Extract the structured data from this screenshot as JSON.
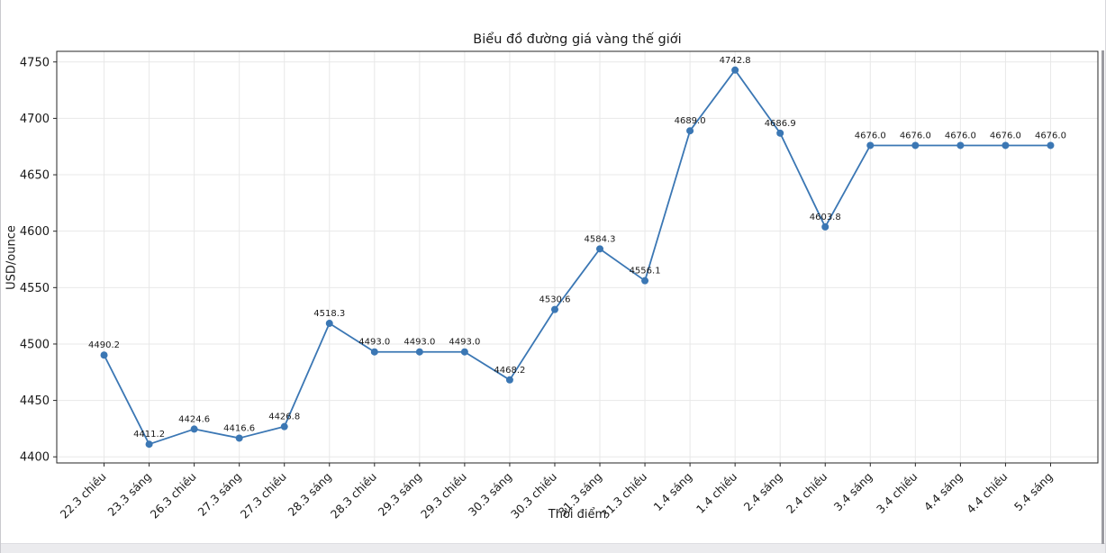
{
  "page": {
    "background": "#ffffff",
    "bottom_strip_color": "#ebebee",
    "scrollbar_color": "#9b9ba1"
  },
  "chart_data": {
    "type": "line",
    "title": "Biểu đồ đường giá vàng thế giới",
    "xlabel": "Thời điểm",
    "ylabel": "USD/ounce",
    "categories": [
      "22.3 chiều",
      "23.3 sáng",
      "26.3 chiều",
      "27.3 sáng",
      "27.3 chiều",
      "28.3 sáng",
      "28.3 chiều",
      "29.3 sáng",
      "29.3 chiều",
      "30.3 sáng",
      "30.3 chiều",
      "31.3 sáng",
      "31.3 chiều",
      "1.4 sáng",
      "1.4 chiều",
      "2.4 sáng",
      "2.4 chiều",
      "3.4 sáng",
      "3.4 chiều",
      "4.4 sáng",
      "4.4 chiều",
      "5.4 sáng"
    ],
    "values": [
      4490.2,
      4411.2,
      4424.6,
      4416.6,
      4426.8,
      4518.3,
      4493.0,
      4493.0,
      4493.0,
      4468.2,
      4530.6,
      4584.3,
      4556.1,
      4689.0,
      4742.8,
      4686.9,
      4603.8,
      4676.0,
      4676.0,
      4676.0,
      4676.0,
      4676.0
    ],
    "point_labels": [
      "4490.2",
      "4411.2",
      "4424.6",
      "4416.6",
      "4426.8",
      "4518.3",
      "4493.0",
      "4493.0",
      "4493.0",
      "4468.2",
      "4530.6",
      "4584.3",
      "4556.1",
      "4689.0",
      "4742.8",
      "4686.9",
      "4603.8",
      "4676.0",
      "4676.0",
      "4676.0",
      "4676.0",
      "4676.0"
    ],
    "yticks": [
      4400,
      4450,
      4500,
      4550,
      4600,
      4650,
      4700,
      4750
    ],
    "ylim": [
      4394.6,
      4759.4
    ],
    "grid": true,
    "legend": "none",
    "line_color": "#3b77b4",
    "marker": "circle",
    "grid_color": "#e8e8e8",
    "spine_color": "#262626",
    "text_color": "#1a1a1a"
  }
}
